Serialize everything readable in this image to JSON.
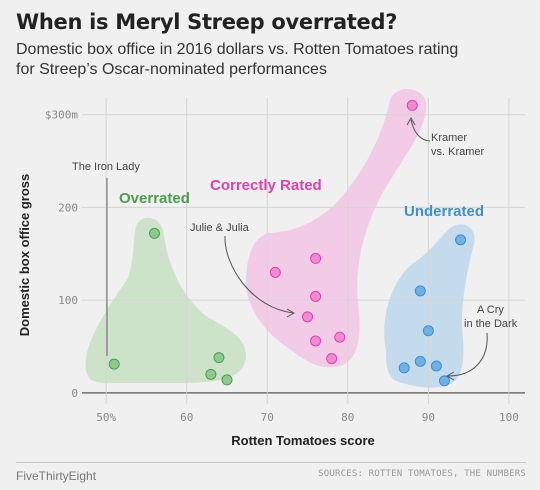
{
  "header": {
    "title": "When is Meryl Streep overrated?",
    "subtitle_line1": "Domestic box office in 2016 dollars vs. Rotten Tomatoes rating",
    "subtitle_line2": "for Streep’s Oscar-nominated performances"
  },
  "footer": {
    "brand": "FiveThirtyEight",
    "source": "SOURCES: ROTTEN TOMATOES, THE NUMBERS"
  },
  "chart_data": {
    "type": "scatter",
    "xlabel": "Rotten Tomatoes score",
    "ylabel": "Domestic box office gross",
    "xlim": [
      47,
      102
    ],
    "ylim": [
      -12,
      318
    ],
    "x_ticks": [
      50,
      60,
      70,
      80,
      90,
      100
    ],
    "x_tick_labels": [
      "50%",
      "60",
      "70",
      "80",
      "90",
      "100"
    ],
    "y_ticks": [
      0,
      100,
      200,
      300
    ],
    "y_tick_labels": [
      "0",
      "100",
      "200",
      "$300m"
    ],
    "grid": true,
    "series": [
      {
        "name": "Overrated",
        "color": "#4a9e4e",
        "fill": "#8fc98d",
        "blob": "#c3e0c0",
        "points": [
          [
            51,
            31
          ],
          [
            56,
            172
          ],
          [
            63,
            20
          ],
          [
            64,
            38
          ],
          [
            65,
            14
          ]
        ]
      },
      {
        "name": "Correctly Rated",
        "color": "#e040b0",
        "fill": "#f28ad3",
        "blob": "#f3c3e3",
        "points": [
          [
            71,
            130
          ],
          [
            75,
            82
          ],
          [
            76,
            145
          ],
          [
            76,
            104
          ],
          [
            76,
            56
          ],
          [
            78,
            37
          ],
          [
            79,
            60
          ],
          [
            88,
            310
          ]
        ]
      },
      {
        "name": "Underrated",
        "color": "#3d8fd0",
        "fill": "#6fb1e4",
        "blob": "#b9d6ec",
        "points": [
          [
            87,
            27
          ],
          [
            89,
            110
          ],
          [
            89,
            34
          ],
          [
            90,
            67
          ],
          [
            91,
            29
          ],
          [
            92,
            13
          ],
          [
            94,
            165
          ]
        ]
      }
    ],
    "annotations": [
      {
        "text": "The Iron Lady",
        "x": 51,
        "y": 31
      },
      {
        "text": "Julie & Julia",
        "x": 75,
        "y": 82
      },
      {
        "text": "Kramer",
        "text2": "vs. Kramer",
        "x": 88,
        "y": 310
      },
      {
        "text": "A Cry",
        "text2": "in the Dark",
        "x": 92,
        "y": 13
      }
    ]
  }
}
